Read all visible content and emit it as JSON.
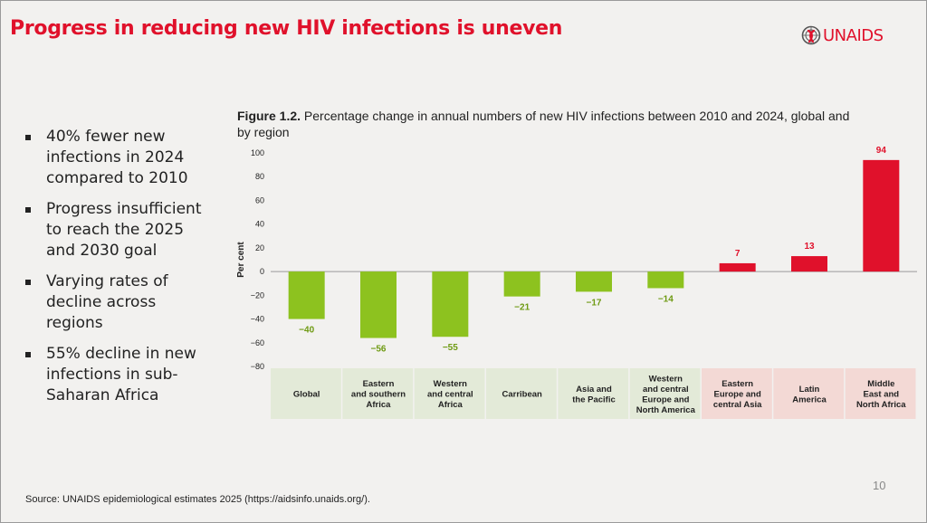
{
  "slide": {
    "title": "Progress in reducing new HIV infections is uneven",
    "logo_text": "UNAIDS",
    "bullets": [
      "40% fewer new infections in 2024 compared to 2010",
      "Progress insufficient to reach the 2025 and 2030 goal",
      "Varying rates of decline across regions",
      "55% decline in new infections in sub-Saharan Africa"
    ],
    "figure_label": "Figure 1.2.",
    "figure_caption": "Percentage change in annual numbers of new HIV infections between 2010 and 2024, global and by region",
    "page_number": "10",
    "source": "Source: UNAIDS epidemiological estimates 2025 (https://aidsinfo.unaids.org/)."
  },
  "colors": {
    "title_red": "#e0112b",
    "decline_green": "#8dc21f",
    "increase_red": "#e0112b",
    "label_green": "#6e9a12",
    "green_band": "#e3ead8",
    "red_band": "#f3d9d5",
    "background": "#f2f1ef"
  },
  "chart_data": {
    "type": "bar",
    "ylabel": "Per cent",
    "ylim": [
      -80,
      100
    ],
    "yticks": [
      "100",
      "80",
      "60",
      "40",
      "20",
      "0",
      "−20",
      "−40",
      "−60",
      "−80"
    ],
    "categories": [
      [
        "Global"
      ],
      [
        "Eastern",
        "and southern",
        "Africa"
      ],
      [
        "Western",
        "and central",
        "Africa"
      ],
      [
        "Carribean"
      ],
      [
        "Asia and",
        "the Pacific"
      ],
      [
        "Western",
        "and central",
        "Europe and",
        "North America"
      ],
      [
        "Eastern",
        "Europe and",
        "central Asia"
      ],
      [
        "Latin",
        "America"
      ],
      [
        "Middle",
        "East and",
        "North Africa"
      ]
    ],
    "values": [
      -40,
      -56,
      -55,
      -21,
      -17,
      -14,
      7,
      13,
      94
    ],
    "value_labels": [
      "−40",
      "−56",
      "−55",
      "−21",
      "−17",
      "−14",
      "7",
      "13",
      "94"
    ],
    "grid": false,
    "legend": "none"
  }
}
